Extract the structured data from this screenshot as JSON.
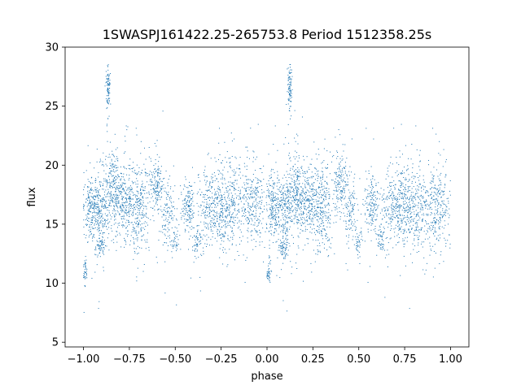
{
  "chart_data": {
    "type": "scatter",
    "title": "1SWASPJ161422.25-265753.8 Period 1512358.25s",
    "xlabel": "phase",
    "ylabel": "flux",
    "xlim": [
      -1.1,
      1.1
    ],
    "ylim": [
      4.6,
      30.0
    ],
    "xticks": [
      -1.0,
      -0.75,
      -0.5,
      -0.25,
      0.0,
      0.25,
      0.5,
      0.75,
      1.0
    ],
    "xtick_labels": [
      "−1.00",
      "−0.75",
      "−0.50",
      "−0.25",
      "0.00",
      "0.25",
      "0.50",
      "0.75",
      "1.00"
    ],
    "yticks": [
      5,
      10,
      15,
      20,
      25,
      30
    ],
    "ytick_labels": [
      "5",
      "10",
      "15",
      "20",
      "25",
      "30"
    ],
    "grid": false,
    "marker_color": "#1f77b4",
    "series": [
      {
        "description_note": "",
        "clusters": [
          {
            "x": -0.99,
            "x_spread": 0.006,
            "y": 11.0,
            "y_spread": 0.7,
            "n": 40
          },
          {
            "x": -0.96,
            "x_spread": 0.02,
            "y": 16.5,
            "y_spread": 1.4,
            "n": 220
          },
          {
            "x": -0.91,
            "x_spread": 0.015,
            "y": 13.0,
            "y_spread": 0.5,
            "n": 60
          },
          {
            "x": -0.9,
            "x_spread": 0.02,
            "y": 16.2,
            "y_spread": 1.6,
            "n": 200
          },
          {
            "x": -0.865,
            "x_spread": 0.006,
            "y": 26.5,
            "y_spread": 0.9,
            "n": 90
          },
          {
            "x": -0.84,
            "x_spread": 0.02,
            "y": 18.0,
            "y_spread": 1.8,
            "n": 200
          },
          {
            "x": -0.78,
            "x_spread": 0.03,
            "y": 17.0,
            "y_spread": 1.5,
            "n": 260
          },
          {
            "x": -0.7,
            "x_spread": 0.03,
            "y": 16.5,
            "y_spread": 1.9,
            "n": 280
          },
          {
            "x": -0.6,
            "x_spread": 0.02,
            "y": 18.5,
            "y_spread": 1.4,
            "n": 160
          },
          {
            "x": -0.54,
            "x_spread": 0.02,
            "y": 16.0,
            "y_spread": 1.5,
            "n": 120
          },
          {
            "x": -0.5,
            "x_spread": 0.01,
            "y": 13.5,
            "y_spread": 0.5,
            "n": 40
          },
          {
            "x": -0.43,
            "x_spread": 0.02,
            "y": 16.5,
            "y_spread": 1.0,
            "n": 150
          },
          {
            "x": -0.38,
            "x_spread": 0.015,
            "y": 13.5,
            "y_spread": 0.7,
            "n": 60
          },
          {
            "x": -0.3,
            "x_spread": 0.04,
            "y": 16.5,
            "y_spread": 1.6,
            "n": 300
          },
          {
            "x": -0.2,
            "x_spread": 0.04,
            "y": 16.5,
            "y_spread": 1.8,
            "n": 300
          },
          {
            "x": -0.08,
            "x_spread": 0.04,
            "y": 16.5,
            "y_spread": 1.8,
            "n": 300
          },
          {
            "x": 0.01,
            "x_spread": 0.006,
            "y": 11.0,
            "y_spread": 0.7,
            "n": 40
          },
          {
            "x": 0.04,
            "x_spread": 0.02,
            "y": 16.5,
            "y_spread": 1.4,
            "n": 220
          },
          {
            "x": 0.09,
            "x_spread": 0.015,
            "y": 13.0,
            "y_spread": 0.5,
            "n": 60
          },
          {
            "x": 0.1,
            "x_spread": 0.02,
            "y": 16.2,
            "y_spread": 1.6,
            "n": 200
          },
          {
            "x": 0.125,
            "x_spread": 0.006,
            "y": 26.5,
            "y_spread": 0.9,
            "n": 90
          },
          {
            "x": 0.16,
            "x_spread": 0.02,
            "y": 18.0,
            "y_spread": 1.8,
            "n": 200
          },
          {
            "x": 0.22,
            "x_spread": 0.03,
            "y": 17.0,
            "y_spread": 1.5,
            "n": 260
          },
          {
            "x": 0.3,
            "x_spread": 0.03,
            "y": 16.5,
            "y_spread": 1.9,
            "n": 280
          },
          {
            "x": 0.4,
            "x_spread": 0.02,
            "y": 18.5,
            "y_spread": 1.4,
            "n": 160
          },
          {
            "x": 0.46,
            "x_spread": 0.02,
            "y": 16.0,
            "y_spread": 1.5,
            "n": 120
          },
          {
            "x": 0.5,
            "x_spread": 0.01,
            "y": 13.5,
            "y_spread": 0.5,
            "n": 40
          },
          {
            "x": 0.57,
            "x_spread": 0.02,
            "y": 16.5,
            "y_spread": 1.0,
            "n": 150
          },
          {
            "x": 0.62,
            "x_spread": 0.015,
            "y": 13.5,
            "y_spread": 0.7,
            "n": 60
          },
          {
            "x": 0.7,
            "x_spread": 0.04,
            "y": 16.5,
            "y_spread": 1.6,
            "n": 300
          },
          {
            "x": 0.8,
            "x_spread": 0.04,
            "y": 16.5,
            "y_spread": 1.8,
            "n": 300
          },
          {
            "x": 0.92,
            "x_spread": 0.04,
            "y": 16.5,
            "y_spread": 1.8,
            "n": 300
          }
        ],
        "outlier_fraction": 0.04
      }
    ]
  }
}
